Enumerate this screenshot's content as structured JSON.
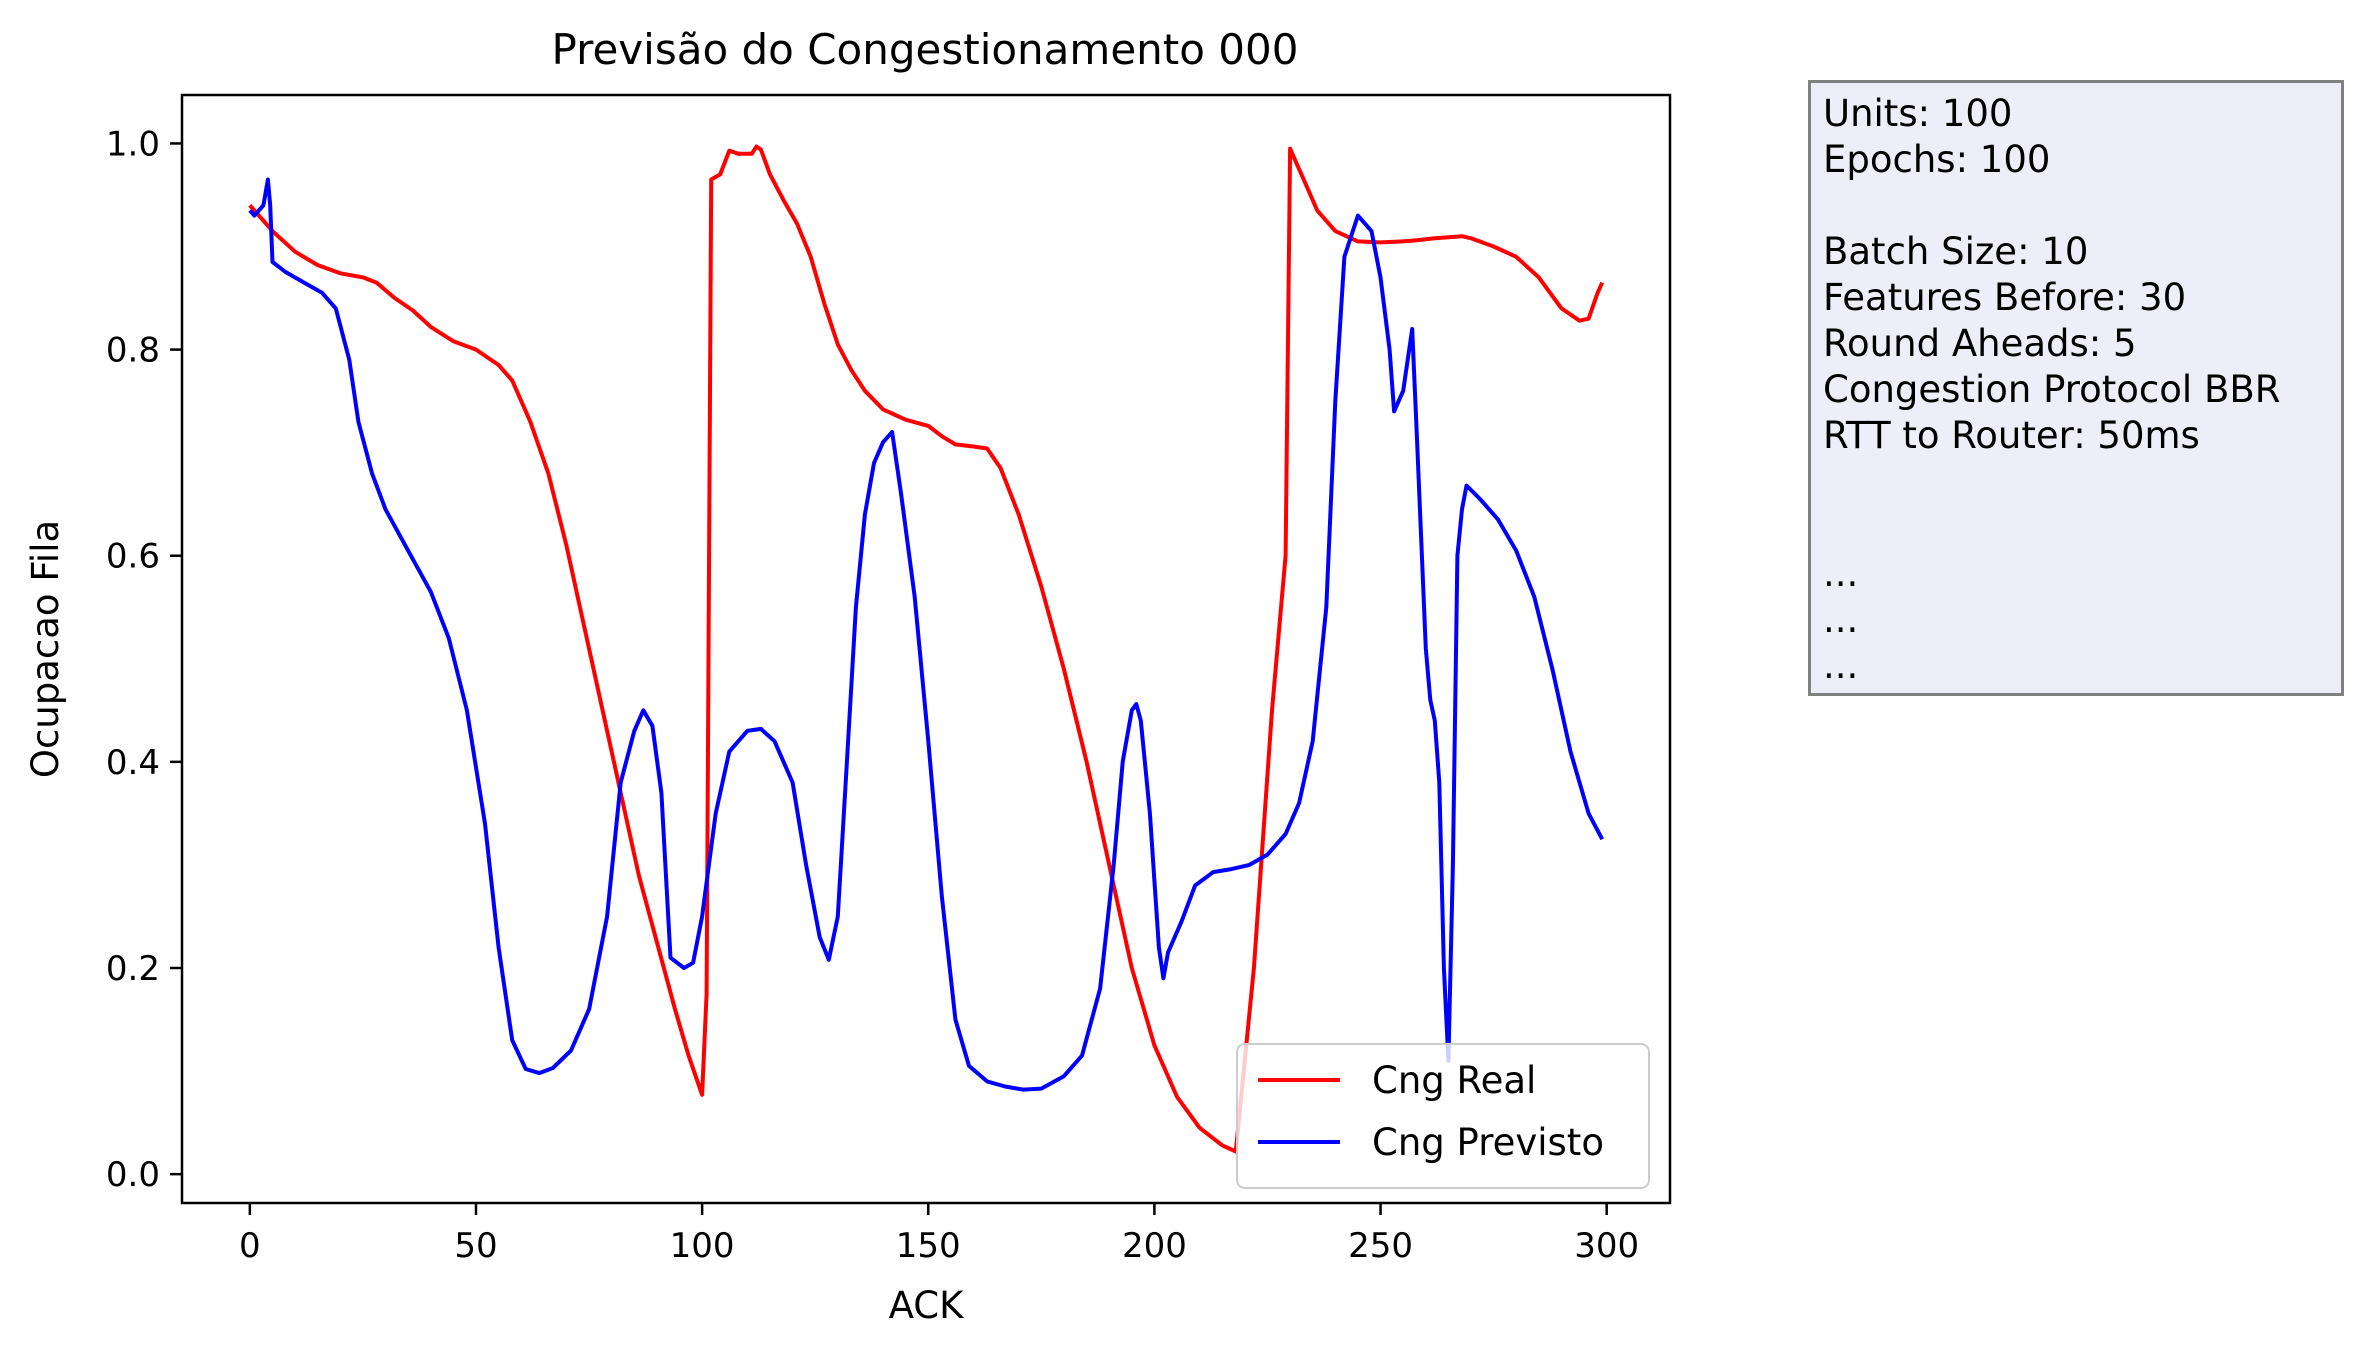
{
  "chart_data": {
    "type": "line",
    "title": "Previsão do Congestionamento 000",
    "xlabel": "ACK",
    "ylabel": "Ocupacao Fila",
    "xlim": [
      -15,
      314
    ],
    "ylim": [
      -0.028,
      1.047
    ],
    "xticks": [
      0,
      50,
      100,
      150,
      200,
      250,
      300
    ],
    "xtick_labels": [
      "0",
      "50",
      "100",
      "150",
      "200",
      "250",
      "300"
    ],
    "yticks": [
      0.0,
      0.2,
      0.4,
      0.6,
      0.8,
      1.0
    ],
    "ytick_labels": [
      "0.0",
      "0.2",
      "0.4",
      "0.6",
      "0.8",
      "1.0"
    ],
    "grid": false,
    "legend_position": "lower-right",
    "series": [
      {
        "name": "Cng Real",
        "color": "#ff0000",
        "points": [
          [
            0,
            0.94
          ],
          [
            2,
            0.93
          ],
          [
            5,
            0.915
          ],
          [
            10,
            0.895
          ],
          [
            15,
            0.882
          ],
          [
            20,
            0.874
          ],
          [
            25,
            0.87
          ],
          [
            28,
            0.865
          ],
          [
            32,
            0.85
          ],
          [
            36,
            0.838
          ],
          [
            40,
            0.822
          ],
          [
            45,
            0.808
          ],
          [
            50,
            0.8
          ],
          [
            55,
            0.785
          ],
          [
            58,
            0.77
          ],
          [
            62,
            0.73
          ],
          [
            66,
            0.68
          ],
          [
            70,
            0.61
          ],
          [
            74,
            0.53
          ],
          [
            78,
            0.45
          ],
          [
            82,
            0.37
          ],
          [
            86,
            0.29
          ],
          [
            90,
            0.225
          ],
          [
            94,
            0.16
          ],
          [
            97,
            0.115
          ],
          [
            100,
            0.077
          ],
          [
            101,
            0.175
          ],
          [
            102,
            0.965
          ],
          [
            104,
            0.97
          ],
          [
            106,
            0.993
          ],
          [
            108,
            0.99
          ],
          [
            111,
            0.99
          ],
          [
            112,
            0.997
          ],
          [
            113,
            0.994
          ],
          [
            115,
            0.97
          ],
          [
            118,
            0.945
          ],
          [
            121,
            0.922
          ],
          [
            124,
            0.89
          ],
          [
            127,
            0.845
          ],
          [
            130,
            0.805
          ],
          [
            133,
            0.78
          ],
          [
            136,
            0.76
          ],
          [
            140,
            0.742
          ],
          [
            145,
            0.732
          ],
          [
            150,
            0.726
          ],
          [
            153,
            0.716
          ],
          [
            156,
            0.708
          ],
          [
            160,
            0.706
          ],
          [
            163,
            0.704
          ],
          [
            166,
            0.685
          ],
          [
            170,
            0.64
          ],
          [
            175,
            0.57
          ],
          [
            180,
            0.49
          ],
          [
            185,
            0.4
          ],
          [
            190,
            0.3
          ],
          [
            195,
            0.2
          ],
          [
            200,
            0.125
          ],
          [
            205,
            0.075
          ],
          [
            210,
            0.045
          ],
          [
            215,
            0.028
          ],
          [
            218,
            0.022
          ],
          [
            222,
            0.2
          ],
          [
            226,
            0.45
          ],
          [
            229,
            0.6
          ],
          [
            230,
            0.995
          ],
          [
            231,
            0.985
          ],
          [
            233,
            0.965
          ],
          [
            236,
            0.935
          ],
          [
            240,
            0.915
          ],
          [
            245,
            0.905
          ],
          [
            250,
            0.904
          ],
          [
            255,
            0.905
          ],
          [
            258,
            0.906
          ],
          [
            262,
            0.908
          ],
          [
            268,
            0.91
          ],
          [
            270,
            0.908
          ],
          [
            275,
            0.9
          ],
          [
            280,
            0.89
          ],
          [
            285,
            0.87
          ],
          [
            290,
            0.84
          ],
          [
            294,
            0.828
          ],
          [
            296,
            0.83
          ],
          [
            298,
            0.855
          ],
          [
            299,
            0.865
          ]
        ]
      },
      {
        "name": "Cng Previsto",
        "color": "#0000ff",
        "points": [
          [
            0,
            0.935
          ],
          [
            1,
            0.93
          ],
          [
            2,
            0.935
          ],
          [
            3,
            0.94
          ],
          [
            4,
            0.965
          ],
          [
            4.5,
            0.94
          ],
          [
            5,
            0.885
          ],
          [
            8,
            0.875
          ],
          [
            12,
            0.865
          ],
          [
            16,
            0.855
          ],
          [
            19,
            0.84
          ],
          [
            22,
            0.79
          ],
          [
            24,
            0.73
          ],
          [
            27,
            0.68
          ],
          [
            30,
            0.645
          ],
          [
            35,
            0.605
          ],
          [
            40,
            0.565
          ],
          [
            44,
            0.52
          ],
          [
            48,
            0.45
          ],
          [
            52,
            0.34
          ],
          [
            55,
            0.22
          ],
          [
            58,
            0.13
          ],
          [
            61,
            0.102
          ],
          [
            64,
            0.098
          ],
          [
            67,
            0.103
          ],
          [
            71,
            0.12
          ],
          [
            75,
            0.16
          ],
          [
            79,
            0.25
          ],
          [
            82,
            0.38
          ],
          [
            85,
            0.43
          ],
          [
            87,
            0.45
          ],
          [
            89,
            0.435
          ],
          [
            91,
            0.37
          ],
          [
            93,
            0.21
          ],
          [
            96,
            0.2
          ],
          [
            98,
            0.205
          ],
          [
            100,
            0.25
          ],
          [
            103,
            0.35
          ],
          [
            106,
            0.41
          ],
          [
            110,
            0.43
          ],
          [
            113,
            0.432
          ],
          [
            116,
            0.42
          ],
          [
            120,
            0.38
          ],
          [
            123,
            0.3
          ],
          [
            126,
            0.23
          ],
          [
            128,
            0.208
          ],
          [
            130,
            0.25
          ],
          [
            132,
            0.4
          ],
          [
            134,
            0.55
          ],
          [
            136,
            0.64
          ],
          [
            138,
            0.69
          ],
          [
            140,
            0.71
          ],
          [
            142,
            0.72
          ],
          [
            144,
            0.66
          ],
          [
            147,
            0.56
          ],
          [
            150,
            0.42
          ],
          [
            153,
            0.27
          ],
          [
            156,
            0.15
          ],
          [
            159,
            0.105
          ],
          [
            163,
            0.09
          ],
          [
            167,
            0.085
          ],
          [
            171,
            0.082
          ],
          [
            175,
            0.083
          ],
          [
            180,
            0.095
          ],
          [
            184,
            0.115
          ],
          [
            188,
            0.18
          ],
          [
            191,
            0.3
          ],
          [
            193,
            0.4
          ],
          [
            195,
            0.45
          ],
          [
            196,
            0.456
          ],
          [
            197,
            0.44
          ],
          [
            199,
            0.35
          ],
          [
            201,
            0.22
          ],
          [
            202,
            0.19
          ],
          [
            203,
            0.215
          ],
          [
            206,
            0.245
          ],
          [
            209,
            0.28
          ],
          [
            213,
            0.293
          ],
          [
            217,
            0.296
          ],
          [
            221,
            0.3
          ],
          [
            225,
            0.31
          ],
          [
            229,
            0.33
          ],
          [
            232,
            0.36
          ],
          [
            235,
            0.42
          ],
          [
            238,
            0.55
          ],
          [
            240,
            0.75
          ],
          [
            242,
            0.89
          ],
          [
            245,
            0.93
          ],
          [
            248,
            0.915
          ],
          [
            250,
            0.87
          ],
          [
            252,
            0.8
          ],
          [
            253,
            0.74
          ],
          [
            255,
            0.76
          ],
          [
            257,
            0.82
          ],
          [
            258,
            0.72
          ],
          [
            260,
            0.51
          ],
          [
            261,
            0.46
          ],
          [
            262,
            0.44
          ],
          [
            263,
            0.38
          ],
          [
            264,
            0.2
          ],
          [
            265,
            0.11
          ],
          [
            266,
            0.3
          ],
          [
            267,
            0.6
          ],
          [
            268,
            0.645
          ],
          [
            269,
            0.668
          ],
          [
            272,
            0.655
          ],
          [
            276,
            0.635
          ],
          [
            280,
            0.605
          ],
          [
            284,
            0.56
          ],
          [
            288,
            0.49
          ],
          [
            292,
            0.41
          ],
          [
            296,
            0.35
          ],
          [
            299,
            0.325
          ]
        ]
      }
    ]
  },
  "info_box": {
    "lines": [
      "Units: 100",
      "Epochs: 100",
      "",
      "Batch Size: 10",
      "Features Before: 30",
      "Round Aheads: 5",
      "Congestion Protocol BBR",
      "RTT to Router: 50ms",
      "",
      "",
      "...",
      "...",
      "..."
    ],
    "background": "#eeeef8",
    "border_color": "#808080"
  }
}
